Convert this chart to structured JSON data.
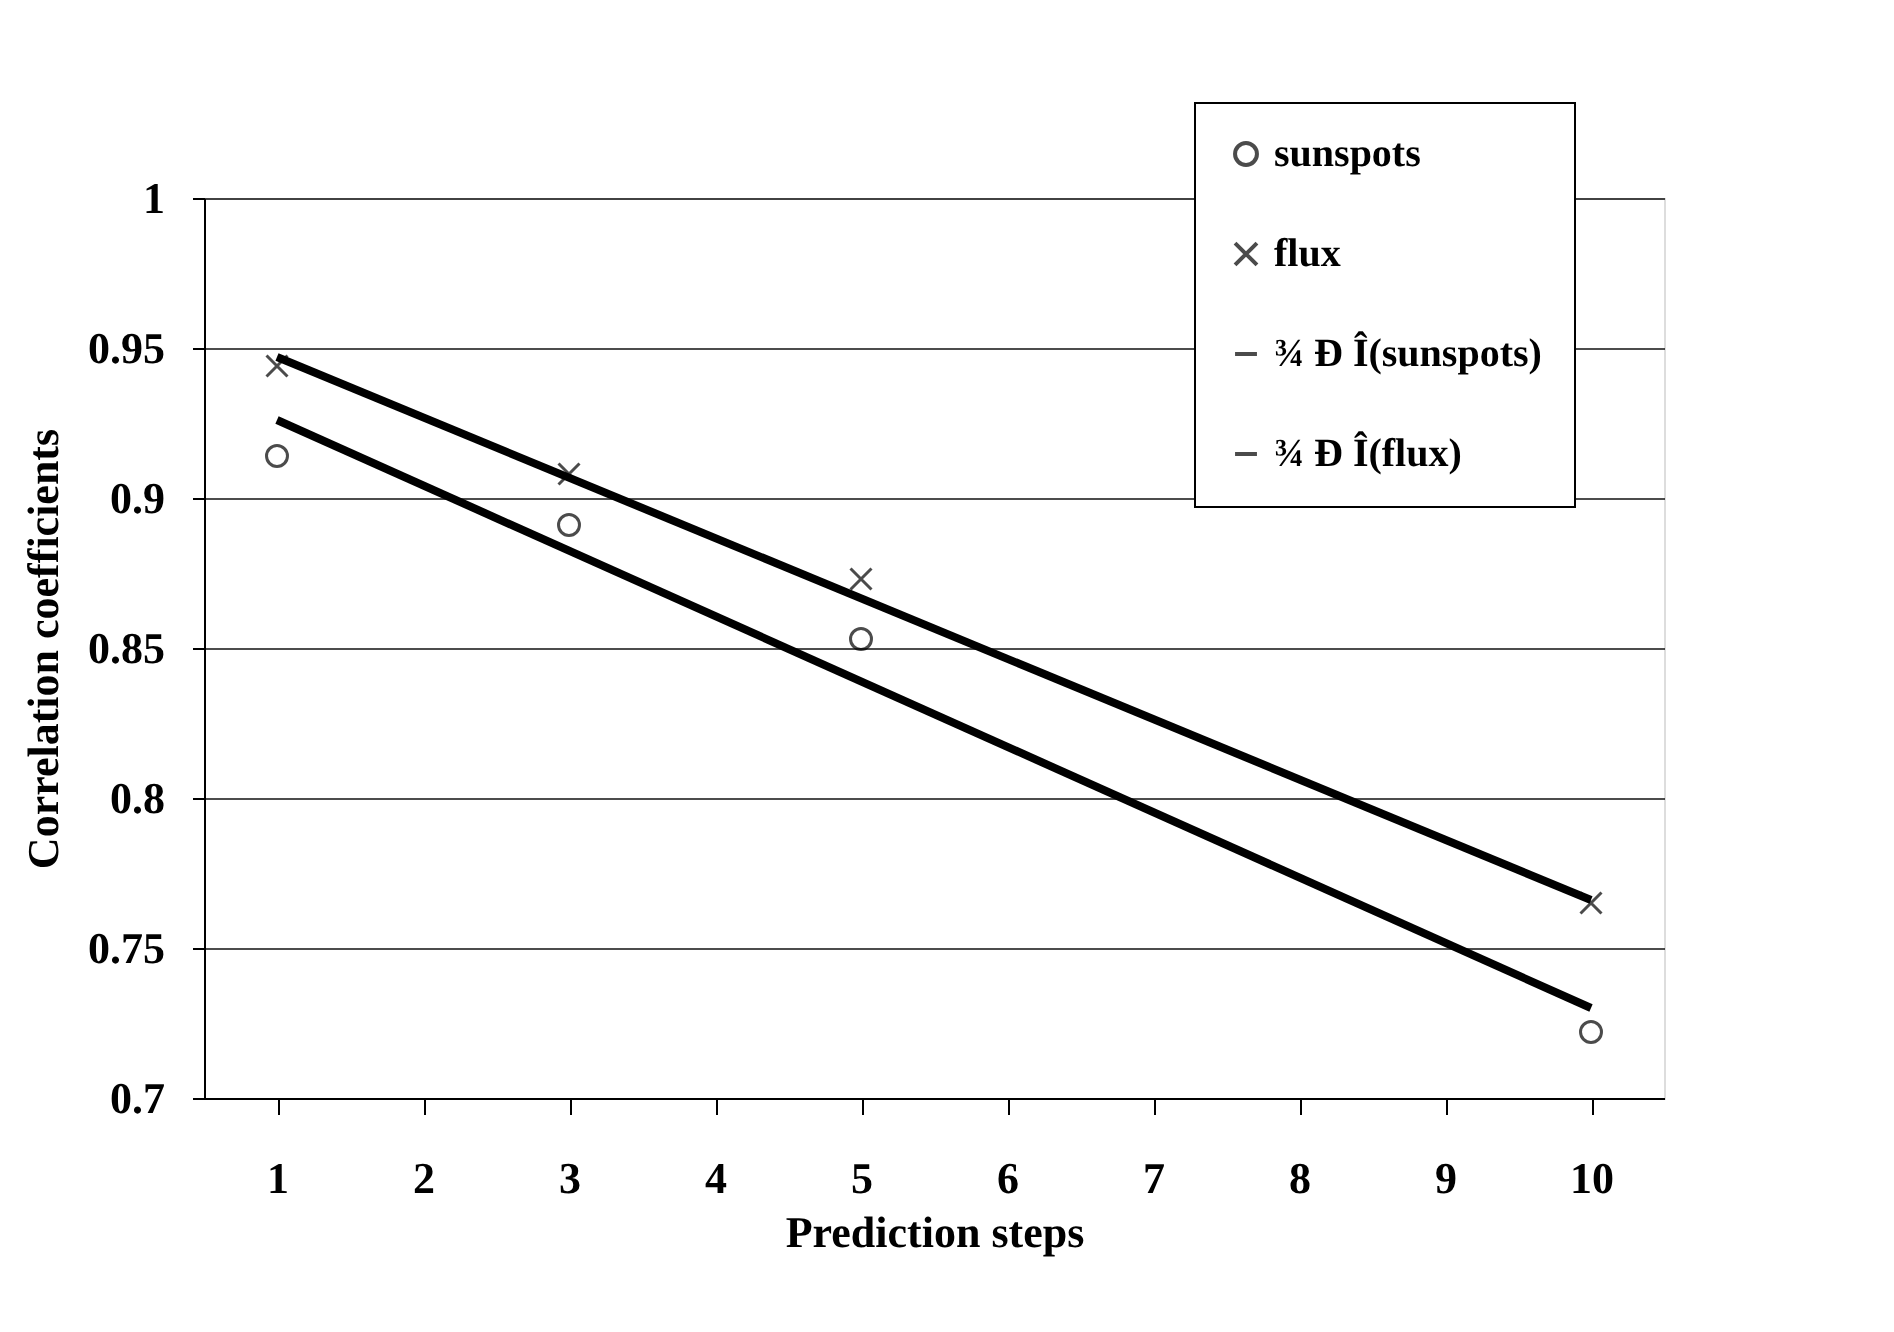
{
  "chart_data": {
    "type": "scatter",
    "xlabel": "Prediction steps",
    "ylabel": "Correlation coefficients",
    "categories": [
      "1",
      "2",
      "3",
      "4",
      "5",
      "6",
      "7",
      "8",
      "9",
      "10"
    ],
    "ylim": [
      0.7,
      1
    ],
    "yticks": [
      0.7,
      0.75,
      0.8,
      0.85,
      0.9,
      0.95,
      1
    ],
    "grid": "y",
    "legend": "top right",
    "series": [
      {
        "name": "sunspots",
        "marker": "circle",
        "color": "#000000",
        "x": [
          "1",
          "3",
          "5",
          "10"
        ],
        "values": [
          0.914,
          0.891,
          0.853,
          0.722
        ]
      },
      {
        "name": "flux",
        "marker": "cross",
        "color": "#000000",
        "x": [
          "1",
          "3",
          "5",
          "10"
        ],
        "values": [
          0.944,
          0.908,
          0.873,
          0.765
        ]
      },
      {
        "name": "¾ Ð Î(sunspots)",
        "type": "line",
        "marker": "none",
        "line_style": "solid",
        "color": "#000000",
        "x": [
          "1",
          "10"
        ],
        "values": [
          0.926,
          0.73
        ]
      },
      {
        "name": "¾ Ð Î(flux)",
        "type": "line",
        "marker": "none",
        "line_style": "solid",
        "color": "#000000",
        "x": [
          "1",
          "10"
        ],
        "values": [
          0.947,
          0.766
        ]
      }
    ]
  }
}
